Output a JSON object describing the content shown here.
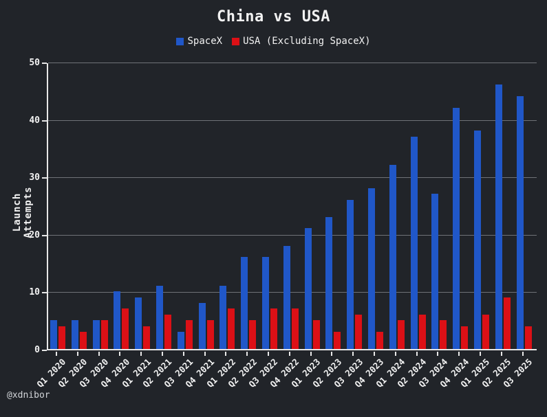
{
  "header": {
    "title": "China vs USA"
  },
  "footer": {
    "watermark": "@xdnibor"
  },
  "theme": {
    "background": "#212429",
    "text": "#f2f2f2",
    "gridline": "#8b8e93",
    "axis": "#e8e8e8",
    "spacex_blue": "#2057c8",
    "usa_red": "#dc1016"
  },
  "chart_data": {
    "type": "bar",
    "title": "China vs USA",
    "xlabel": "",
    "ylabel": "Launch Attempts",
    "ylim": [
      0,
      50
    ],
    "yticks": [
      0,
      10,
      20,
      30,
      40,
      50
    ],
    "grid": true,
    "legend_position": "top",
    "categories": [
      "Q1 2020",
      "Q2 2020",
      "Q3 2020",
      "Q4 2020",
      "Q1 2021",
      "Q2 2021",
      "Q3 2021",
      "Q4 2021",
      "Q1 2022",
      "Q2 2022",
      "Q3 2022",
      "Q4 2022",
      "Q1 2023",
      "Q2 2023",
      "Q3 2023",
      "Q4 2023",
      "Q1 2024",
      "Q2 2024",
      "Q3 2024",
      "Q4 2024",
      "Q1 2025",
      "Q2 2025",
      "Q3 2025"
    ],
    "series": [
      {
        "key": "spacex",
        "name": "SpaceX",
        "color": "#2057c8",
        "values": [
          5,
          5,
          5,
          10,
          9,
          11,
          3,
          8,
          11,
          16,
          16,
          18,
          21,
          23,
          26,
          28,
          32,
          37,
          27,
          42,
          38,
          46,
          44
        ]
      },
      {
        "key": "usa",
        "name": "USA (Excluding SpaceX)",
        "color": "#dc1016",
        "values": [
          4,
          3,
          5,
          7,
          4,
          6,
          5,
          5,
          7,
          5,
          7,
          7,
          5,
          3,
          6,
          3,
          5,
          6,
          5,
          4,
          6,
          9,
          4
        ]
      }
    ]
  }
}
